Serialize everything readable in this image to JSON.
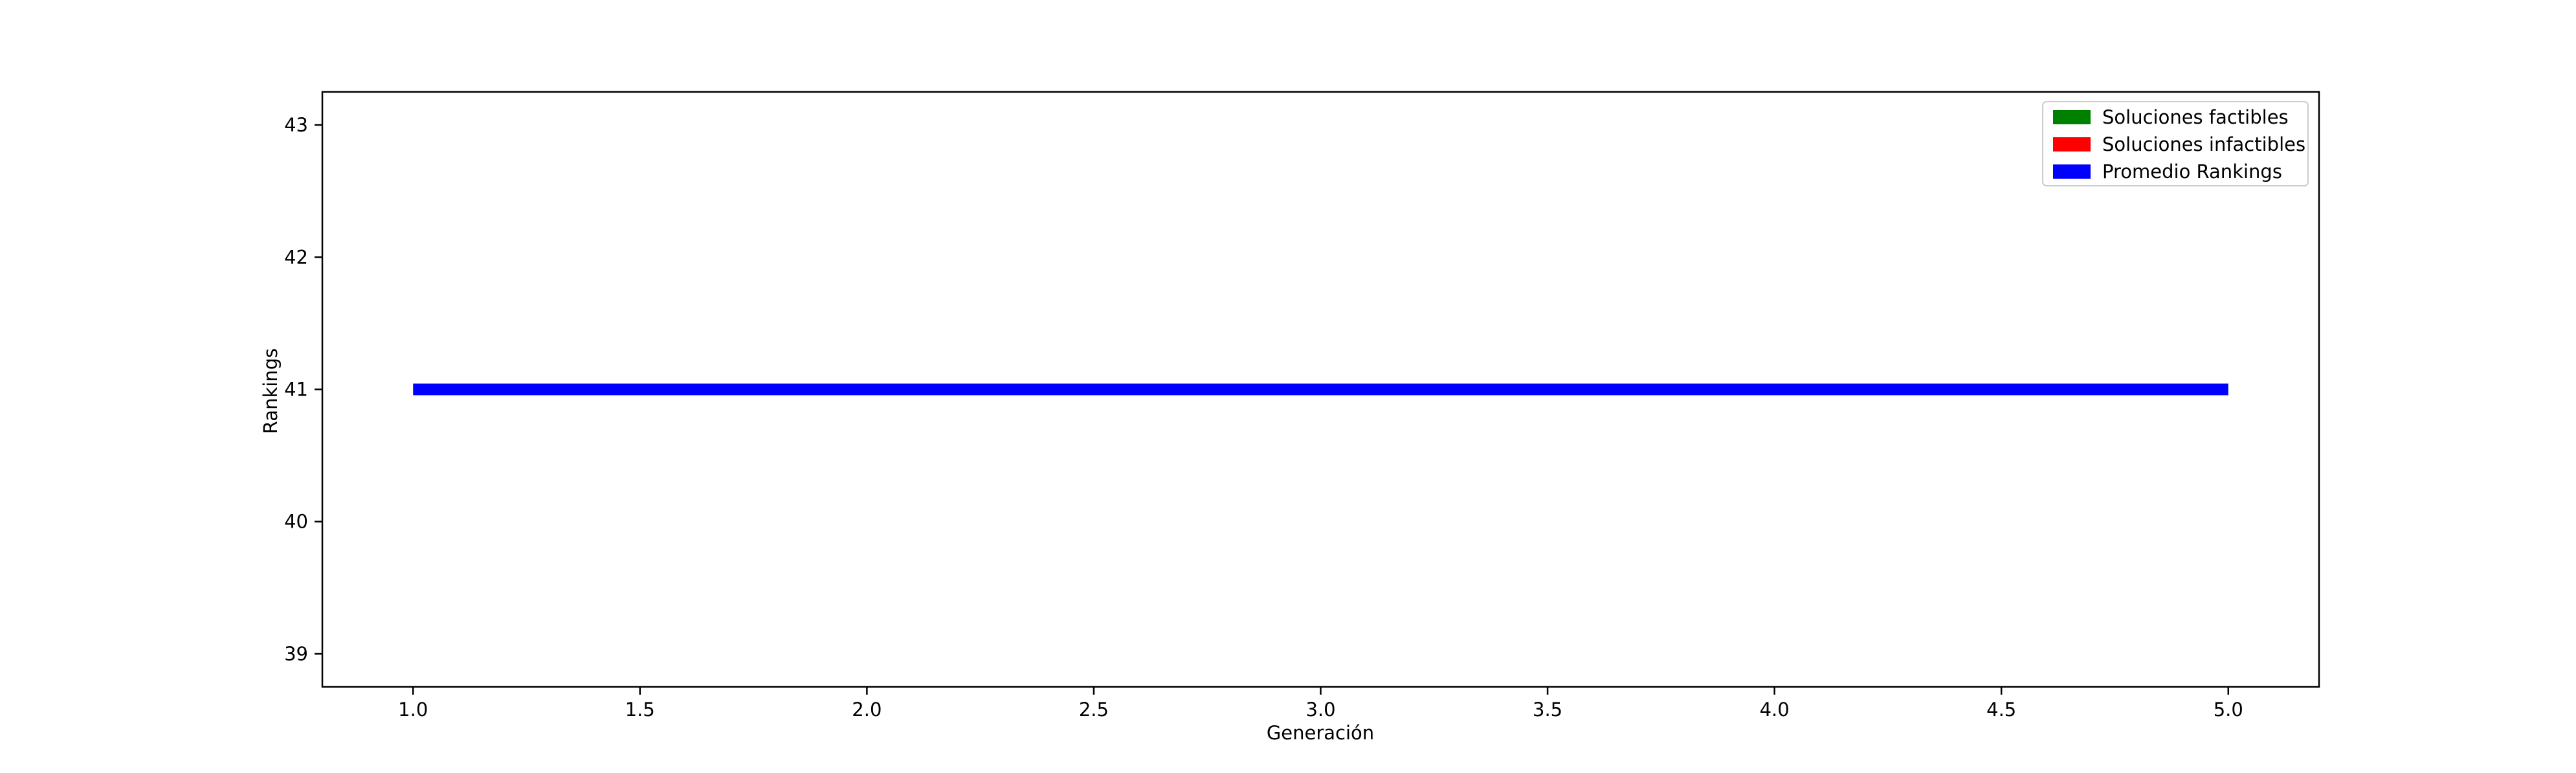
{
  "chart_data": {
    "type": "line",
    "title": "",
    "xlabel": "Generación",
    "ylabel": "Rankings",
    "xlim": [
      0.8,
      5.2
    ],
    "ylim": [
      38.75,
      43.25
    ],
    "xticks": [
      1.0,
      1.5,
      2.0,
      2.5,
      3.0,
      3.5,
      4.0,
      4.5,
      5.0
    ],
    "xtick_labels": [
      "1.0",
      "1.5",
      "2.0",
      "2.5",
      "3.0",
      "3.5",
      "4.0",
      "4.5",
      "5.0"
    ],
    "yticks": [
      39,
      40,
      41,
      42,
      43
    ],
    "ytick_labels": [
      "39",
      "40",
      "41",
      "42",
      "43"
    ],
    "grid": false,
    "legend_position": "top-right",
    "series": [
      {
        "name": "Soluciones factibles",
        "color": "#008000",
        "x": [],
        "y": []
      },
      {
        "name": "Soluciones infactibles",
        "color": "#ff0000",
        "x": [],
        "y": []
      },
      {
        "name": "Promedio Rankings",
        "color": "#0000ff",
        "x": [
          1,
          2,
          3,
          4,
          5
        ],
        "y": [
          41,
          41,
          41,
          41,
          41
        ]
      }
    ]
  }
}
